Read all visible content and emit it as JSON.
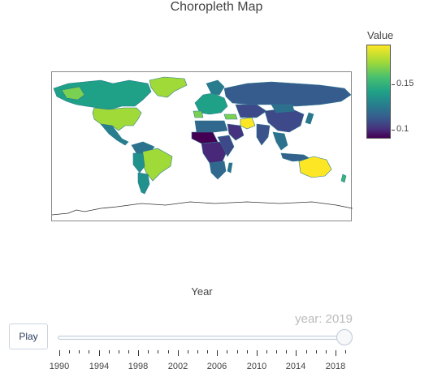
{
  "title": "Choropleth Map",
  "colorbar": {
    "title": "Value",
    "ticks": [
      "0.15",
      "0.1"
    ],
    "colors": [
      "#fde725",
      "#a0da39",
      "#4ac16d",
      "#1fa187",
      "#277f8e",
      "#365c8d",
      "#46327e",
      "#440154"
    ]
  },
  "slider": {
    "label": "Year",
    "current_value": "year: 2019",
    "play_label": "Play",
    "tick_labels": [
      "1990",
      "1994",
      "1998",
      "2002",
      "2006",
      "2010",
      "2014",
      "2018"
    ]
  },
  "chart_data": {
    "type": "choropleth",
    "title": "Choropleth Map",
    "color_scale": "viridis",
    "colorbar_title": "Value",
    "color_range": [
      0.09,
      0.19
    ],
    "current_year": 2019,
    "year_range": [
      1990,
      2019
    ],
    "approx_values": [
      {
        "region": "Australia",
        "value": 0.19
      },
      {
        "region": "Iran",
        "value": 0.19
      },
      {
        "region": "Greenland",
        "value": 0.17
      },
      {
        "region": "Brazil",
        "value": 0.16
      },
      {
        "region": "United States",
        "value": 0.15
      },
      {
        "region": "Canada",
        "value": 0.13
      },
      {
        "region": "Mexico",
        "value": 0.12
      },
      {
        "region": "Russia",
        "value": 0.12
      },
      {
        "region": "China",
        "value": 0.11
      },
      {
        "region": "Central Africa",
        "value": 0.1
      },
      {
        "region": "Sahel",
        "value": 0.09
      }
    ]
  }
}
